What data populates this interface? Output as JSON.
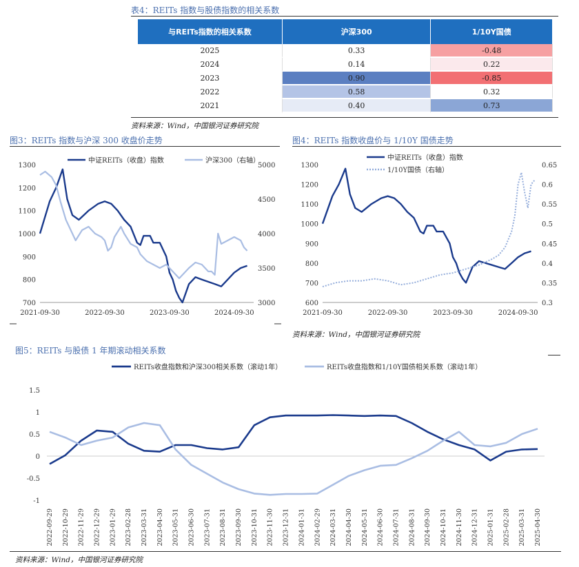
{
  "table": {
    "title": "表4：REITs 指数与股债指数的相关系数",
    "headers": [
      "与REITs指数的相关系数",
      "沪深300",
      "1/10Y国债"
    ],
    "rows": [
      {
        "year": "2025",
        "hs300": "0.33",
        "bond": "-0.48",
        "hs300_color": "#ffffff",
        "bond_color": "#f6a0a2"
      },
      {
        "year": "2024",
        "hs300": "0.14",
        "bond": "0.22",
        "hs300_color": "#ffffff",
        "bond_color": "#fbe9ec"
      },
      {
        "year": "2023",
        "hs300": "0.90",
        "bond": "-0.85",
        "hs300_color": "#5b7fc1",
        "bond_color": "#f27073"
      },
      {
        "year": "2022",
        "hs300": "0.58",
        "bond": "0.32",
        "hs300_color": "#b4c4e6",
        "bond_color": "#ffffff"
      },
      {
        "year": "2021",
        "hs300": "0.40",
        "bond": "0.73",
        "hs300_color": "#e6ebf6",
        "bond_color": "#8ba6d6"
      }
    ],
    "source": "资料来源：Wind，中国银河证券研究院"
  },
  "fig3": {
    "title": "图3：REITs 指数与沪深 300 收盘价走势",
    "source": "资料来源：Wind，中国银河证券研究院"
  },
  "fig4": {
    "title": "图4：REITs 指数收盘价与 1/10Y 国债走势",
    "source": "资料来源：Wind，中国银河证券研究院"
  },
  "fig5": {
    "title": "图5：REITs 与股债 1 年期滚动相关系数",
    "source": "资料来源：Wind，中国银河证券研究院"
  },
  "colors": {
    "dark_blue": "#1a3a8c",
    "light_blue": "#a9bde3",
    "dotted_blue": "#94addb",
    "title_blue": "#4a6fae"
  },
  "chart_data": [
    {
      "id": "fig3",
      "type": "line",
      "x_ticks": [
        "2021-09-30",
        "2022-09-30",
        "2023-09-30",
        "2024-09-30"
      ],
      "ylim": [
        700,
        1300
      ],
      "y_ticks": [
        700,
        800,
        900,
        1000,
        1100,
        1200,
        1300
      ],
      "y2lim": [
        3000,
        5000
      ],
      "y2_ticks": [
        3000,
        3500,
        4000,
        4500,
        5000
      ],
      "series": [
        {
          "name": "中证REITs（收盘）指数",
          "axis": "left",
          "color": "#1a3a8c",
          "points": [
            [
              0,
              1000
            ],
            [
              0.15,
              1140
            ],
            [
              0.25,
              1200
            ],
            [
              0.35,
              1280
            ],
            [
              0.42,
              1150
            ],
            [
              0.5,
              1080
            ],
            [
              0.6,
              1060
            ],
            [
              0.75,
              1100
            ],
            [
              0.9,
              1130
            ],
            [
              1.0,
              1140
            ],
            [
              1.1,
              1130
            ],
            [
              1.2,
              1100
            ],
            [
              1.3,
              1060
            ],
            [
              1.4,
              1030
            ],
            [
              1.5,
              960
            ],
            [
              1.55,
              950
            ],
            [
              1.6,
              990
            ],
            [
              1.7,
              990
            ],
            [
              1.75,
              960
            ],
            [
              1.85,
              960
            ],
            [
              1.95,
              900
            ],
            [
              2.0,
              830
            ],
            [
              2.05,
              800
            ],
            [
              2.1,
              750
            ],
            [
              2.15,
              720
            ],
            [
              2.2,
              700
            ],
            [
              2.3,
              780
            ],
            [
              2.4,
              810
            ],
            [
              2.5,
              800
            ],
            [
              2.6,
              790
            ],
            [
              2.7,
              780
            ],
            [
              2.8,
              770
            ],
            [
              2.9,
              800
            ],
            [
              3.0,
              830
            ],
            [
              3.1,
              850
            ],
            [
              3.2,
              860
            ]
          ]
        },
        {
          "name": "沪深300（右轴）",
          "axis": "right",
          "color": "#a9bde3",
          "points": [
            [
              0,
              4850
            ],
            [
              0.08,
              4900
            ],
            [
              0.18,
              4820
            ],
            [
              0.25,
              4700
            ],
            [
              0.32,
              4450
            ],
            [
              0.4,
              4200
            ],
            [
              0.45,
              4100
            ],
            [
              0.55,
              3900
            ],
            [
              0.65,
              4050
            ],
            [
              0.75,
              4100
            ],
            [
              0.85,
              4000
            ],
            [
              0.95,
              3950
            ],
            [
              1.0,
              3900
            ],
            [
              1.05,
              3750
            ],
            [
              1.1,
              3800
            ],
            [
              1.15,
              3950
            ],
            [
              1.25,
              4100
            ],
            [
              1.3,
              4000
            ],
            [
              1.4,
              3850
            ],
            [
              1.5,
              3800
            ],
            [
              1.55,
              3700
            ],
            [
              1.65,
              3600
            ],
            [
              1.75,
              3550
            ],
            [
              1.85,
              3500
            ],
            [
              1.95,
              3550
            ],
            [
              2.05,
              3450
            ],
            [
              2.15,
              3350
            ],
            [
              2.2,
              3400
            ],
            [
              2.3,
              3500
            ],
            [
              2.4,
              3580
            ],
            [
              2.5,
              3550
            ],
            [
              2.6,
              3450
            ],
            [
              2.65,
              3450
            ],
            [
              2.7,
              3400
            ],
            [
              2.75,
              4000
            ],
            [
              2.8,
              3850
            ],
            [
              2.9,
              3900
            ],
            [
              3.0,
              3950
            ],
            [
              3.1,
              3900
            ],
            [
              3.15,
              3800
            ],
            [
              3.2,
              3750
            ]
          ]
        }
      ]
    },
    {
      "id": "fig4",
      "type": "line",
      "x_ticks": [
        "2021-09-30",
        "2022-09-30",
        "2023-09-30",
        "2024-09-30"
      ],
      "ylim": [
        600,
        1300
      ],
      "y_ticks": [
        600,
        700,
        800,
        900,
        1000,
        1100,
        1200,
        1300
      ],
      "y2lim": [
        0.3,
        0.65
      ],
      "y2_ticks": [
        0.3,
        0.35,
        0.4,
        0.45,
        0.5,
        0.55,
        0.6,
        0.65
      ],
      "series": [
        {
          "name": "中证REITs（收盘）指数",
          "axis": "left",
          "color": "#1a3a8c",
          "points": [
            [
              0,
              1000
            ],
            [
              0.15,
              1140
            ],
            [
              0.25,
              1200
            ],
            [
              0.35,
              1280
            ],
            [
              0.42,
              1150
            ],
            [
              0.5,
              1080
            ],
            [
              0.6,
              1060
            ],
            [
              0.75,
              1100
            ],
            [
              0.9,
              1130
            ],
            [
              1.0,
              1140
            ],
            [
              1.1,
              1130
            ],
            [
              1.2,
              1100
            ],
            [
              1.3,
              1060
            ],
            [
              1.4,
              1030
            ],
            [
              1.5,
              960
            ],
            [
              1.55,
              950
            ],
            [
              1.6,
              990
            ],
            [
              1.7,
              990
            ],
            [
              1.75,
              960
            ],
            [
              1.85,
              960
            ],
            [
              1.95,
              900
            ],
            [
              2.0,
              830
            ],
            [
              2.05,
              800
            ],
            [
              2.1,
              750
            ],
            [
              2.15,
              720
            ],
            [
              2.2,
              700
            ],
            [
              2.3,
              780
            ],
            [
              2.4,
              810
            ],
            [
              2.5,
              800
            ],
            [
              2.6,
              790
            ],
            [
              2.7,
              780
            ],
            [
              2.8,
              770
            ],
            [
              2.9,
              800
            ],
            [
              3.0,
              830
            ],
            [
              3.1,
              850
            ],
            [
              3.2,
              860
            ]
          ]
        },
        {
          "name": "1/10Y国债（右轴）",
          "axis": "right",
          "color": "#94addb",
          "dotted": true,
          "points": [
            [
              0,
              0.34
            ],
            [
              0.2,
              0.35
            ],
            [
              0.4,
              0.355
            ],
            [
              0.6,
              0.355
            ],
            [
              0.8,
              0.36
            ],
            [
              1.0,
              0.355
            ],
            [
              1.2,
              0.345
            ],
            [
              1.4,
              0.35
            ],
            [
              1.6,
              0.36
            ],
            [
              1.8,
              0.37
            ],
            [
              2.0,
              0.375
            ],
            [
              2.2,
              0.385
            ],
            [
              2.4,
              0.395
            ],
            [
              2.6,
              0.41
            ],
            [
              2.7,
              0.42
            ],
            [
              2.8,
              0.44
            ],
            [
              2.9,
              0.48
            ],
            [
              2.95,
              0.52
            ],
            [
              3.0,
              0.6
            ],
            [
              3.05,
              0.63
            ],
            [
              3.1,
              0.58
            ],
            [
              3.15,
              0.54
            ],
            [
              3.2,
              0.6
            ],
            [
              3.25,
              0.61
            ]
          ]
        }
      ]
    },
    {
      "id": "fig5",
      "type": "line",
      "x_ticks": [
        "2022-09-29",
        "2022-10-29",
        "2022-11-29",
        "2022-12-29",
        "2023-01-29",
        "2023-02-28",
        "2023-03-31",
        "2023-04-30",
        "2023-05-31",
        "2023-06-30",
        "2023-07-31",
        "2023-08-31",
        "2023-09-30",
        "2023-10-31",
        "2023-11-30",
        "2023-12-31",
        "2024-01-31",
        "2024-02-29",
        "2024-03-31",
        "2024-04-30",
        "2024-05-31",
        "2024-06-30",
        "2024-07-31",
        "2024-08-31",
        "2024-09-30",
        "2024-10-31",
        "2024-11-30",
        "2024-12-31",
        "2025-01-31",
        "2025-02-28",
        "2025-03-31",
        "2025-04-30"
      ],
      "ylim": [
        -1,
        1.5
      ],
      "y_ticks": [
        -1,
        -0.5,
        0,
        0.5,
        1,
        1.5
      ],
      "series": [
        {
          "name": "REITs收盘指数和沪深300相关系数（滚动1年）",
          "color": "#1a3a8c",
          "values": [
            -0.18,
            0.02,
            0.35,
            0.58,
            0.55,
            0.28,
            0.12,
            0.1,
            0.25,
            0.25,
            0.18,
            0.15,
            0.2,
            0.7,
            0.88,
            0.92,
            0.92,
            0.92,
            0.93,
            0.92,
            0.91,
            0.92,
            0.91,
            0.75,
            0.55,
            0.38,
            0.25,
            0.15,
            -0.1,
            0.1,
            0.15,
            0.16
          ]
        },
        {
          "name": "REITs收盘指数和1/10Y国债相关系数（滚动1年）",
          "color": "#a9bde3",
          "values": [
            0.55,
            0.42,
            0.25,
            0.35,
            0.42,
            0.65,
            0.75,
            0.7,
            0.15,
            -0.2,
            -0.4,
            -0.6,
            -0.75,
            -0.85,
            -0.88,
            -0.86,
            -0.86,
            -0.85,
            -0.65,
            -0.45,
            -0.32,
            -0.22,
            -0.2,
            -0.05,
            0.12,
            0.35,
            0.55,
            0.25,
            0.22,
            0.3,
            0.5,
            0.62
          ]
        }
      ]
    }
  ]
}
